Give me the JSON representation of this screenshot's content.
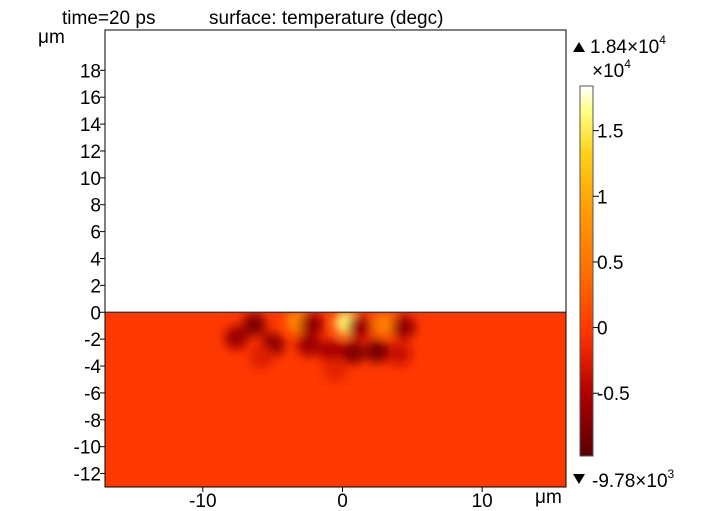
{
  "chart_data": {
    "type": "heatmap",
    "time_label": "time=20 ps",
    "title": "surface: temperature (degc)",
    "x_unit": "μm",
    "y_unit": "μm",
    "xlim": [
      -17,
      16
    ],
    "ylim": [
      -13,
      21
    ],
    "x_ticks": [
      -10,
      0,
      10
    ],
    "y_ticks": [
      18,
      16,
      14,
      12,
      10,
      8,
      6,
      4,
      2,
      0,
      -2,
      -4,
      -6,
      -8,
      -10,
      -12
    ],
    "domain_y_range": [
      -13,
      0
    ],
    "background_value": 0,
    "hot_spots": [
      {
        "x": 0.3,
        "y": -0.8,
        "value": 16000
      },
      {
        "x": -3.2,
        "y": -0.7,
        "value": 7000
      },
      {
        "x": 3.0,
        "y": -0.9,
        "value": 6000
      },
      {
        "x": -6.3,
        "y": -0.9,
        "value": -7500
      },
      {
        "x": -2.2,
        "y": -0.9,
        "value": -6500
      },
      {
        "x": 1.2,
        "y": -1.1,
        "value": -6000
      },
      {
        "x": 4.4,
        "y": -1.1,
        "value": -6500
      },
      {
        "x": -7.6,
        "y": -1.9,
        "value": -6000
      },
      {
        "x": -5.0,
        "y": -2.4,
        "value": -7000
      },
      {
        "x": -2.4,
        "y": -2.4,
        "value": -6000
      },
      {
        "x": -0.8,
        "y": -2.9,
        "value": -5500
      },
      {
        "x": 0.8,
        "y": -3.0,
        "value": -7500
      },
      {
        "x": 2.5,
        "y": -2.9,
        "value": -8000
      },
      {
        "x": 4.1,
        "y": -3.1,
        "value": -3500
      },
      {
        "x": -5.8,
        "y": -3.3,
        "value": -2500
      },
      {
        "x": -0.5,
        "y": -4.3,
        "value": -2000
      }
    ],
    "colorbar": {
      "max_label": "1.84×10",
      "max_exp": "4",
      "scale_label": "×10",
      "scale_exp": "4",
      "min_label": "-9.78×10",
      "min_exp": "3",
      "min_value": -9780,
      "max_value": 18400,
      "ticks": [
        {
          "value": 1.5,
          "label": "1.5"
        },
        {
          "value": 1,
          "label": "1"
        },
        {
          "value": 0.5,
          "label": "0.5"
        },
        {
          "value": 0,
          "label": "0"
        },
        {
          "value": -0.5,
          "label": "-0.5"
        }
      ]
    },
    "legend": "right"
  }
}
